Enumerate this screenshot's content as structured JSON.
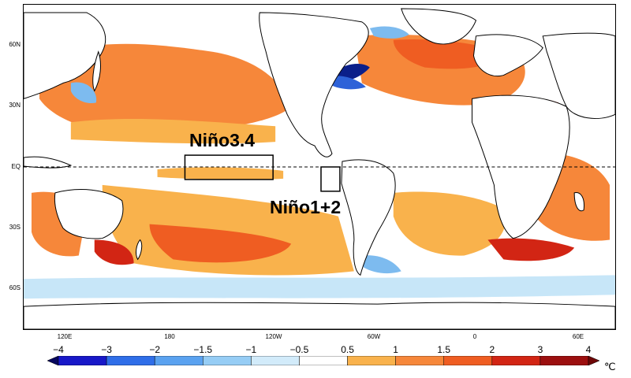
{
  "map": {
    "lat_labels": [
      "60N",
      "30N",
      "EQ",
      "30S",
      "60S"
    ],
    "lon_labels": [
      "120E",
      "180",
      "120W",
      "60W",
      "0",
      "60E"
    ],
    "boxes": [
      {
        "label": "Niño3.4"
      },
      {
        "label": "Niño1+2"
      }
    ],
    "equator_line": "dashed"
  },
  "colorbar": {
    "unit": "℃",
    "ticks": [
      "−4",
      "−3",
      "−2",
      "−1.5",
      "−1",
      "−0.5",
      "0.5",
      "1",
      "1.5",
      "2",
      "3",
      "4"
    ],
    "colors": [
      "#08085e",
      "#1818c8",
      "#2f6ee8",
      "#5aa2f0",
      "#96cdf5",
      "#d2ebfa",
      "#ffffff",
      "#f9b24c",
      "#f6873a",
      "#ef5d22",
      "#d22514",
      "#9c0f0f",
      "#6d0606"
    ]
  },
  "palette": {
    "warm_light": "#f9b24c",
    "warm_mid": "#f6873a",
    "warm_strong": "#ef5d22",
    "warm_red": "#d22514",
    "warm_dark": "#9c0f0f",
    "cool_light": "#c7e6f8",
    "cool_mid": "#7dbbef",
    "cool_strong": "#2e62d8",
    "cool_dark": "#0b1f8a"
  }
}
